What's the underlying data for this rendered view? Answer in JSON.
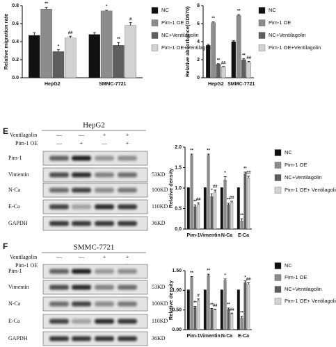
{
  "chart_data": [
    {
      "type": "bar",
      "ylabel": "Relative migration rate",
      "categories": [
        "HepG2",
        "SMMC-7721"
      ],
      "ylim": [
        0,
        0.8
      ],
      "yticks": [
        {
          "value": 0,
          "label": "0.0"
        },
        0.2,
        0.4,
        0.6,
        0.8
      ],
      "series": [
        {
          "name": "NC",
          "color": "#111111",
          "values": [
            0.47,
            0.48
          ],
          "errors": [
            0.03,
            0.02
          ],
          "marks": [
            null,
            null
          ]
        },
        {
          "name": "Pim-1 OE",
          "color": "#8c8c8c",
          "values": [
            0.76,
            0.74
          ],
          "errors": [
            0.02,
            0.01
          ],
          "marks": [
            "**",
            "*"
          ]
        },
        {
          "name": "NC+Ventilagolin",
          "color": "#5e5e5e",
          "values": [
            0.29,
            0.36
          ],
          "errors": [
            0.02,
            0.03
          ],
          "marks": [
            "*",
            "**"
          ]
        },
        {
          "name": "Pim-1 OE+Ventilagolin",
          "color": "#d2d2d2",
          "values": [
            0.44,
            0.58
          ],
          "errors": [
            0.02,
            0.03
          ],
          "marks": [
            "##",
            "#"
          ]
        }
      ]
    },
    {
      "type": "bar",
      "ylabel": "Relative absorbance(OD570)",
      "categories": [
        "HepG2",
        "SMMC-7721"
      ],
      "ylim": [
        0,
        8
      ],
      "yticks": [
        0,
        2,
        4,
        6,
        8
      ],
      "series": [
        {
          "name": "NC",
          "color": "#111111",
          "values": [
            3.6,
            4.0
          ],
          "errors": [
            0.1,
            0.1
          ],
          "marks": [
            null,
            null
          ]
        },
        {
          "name": "Pim-1 OE",
          "color": "#8c8c8c",
          "values": [
            6.1,
            6.9
          ],
          "errors": [
            0.1,
            0.1
          ],
          "marks": [
            "**",
            "**"
          ]
        },
        {
          "name": "NC+Ventilagolin",
          "color": "#5e5e5e",
          "values": [
            1.5,
            2.0
          ],
          "errors": [
            0.05,
            0.1
          ],
          "marks": [
            "**",
            "**"
          ]
        },
        {
          "name": "Pim-1 OE+Ventilagolin",
          "color": "#d2d2d2",
          "values": [
            1.2,
            1.7
          ],
          "errors": [
            0.05,
            0.1
          ],
          "marks": [
            "##",
            "##"
          ]
        }
      ]
    },
    {
      "type": "bar",
      "ylabel": "Relative density",
      "categories": [
        "Pim-1",
        "Vimentin",
        "N-Ca",
        "E-Ca"
      ],
      "ylim": [
        0,
        2.0
      ],
      "yticks": [
        {
          "value": 0,
          "label": "0.0"
        },
        0.5,
        {
          "value": 1,
          "label": "1.0"
        },
        1.5,
        {
          "value": 2,
          "label": "2.0"
        }
      ],
      "series": [
        {
          "name": "NC",
          "color": "#111111",
          "values": [
            1,
            1,
            1,
            1
          ],
          "errors": [
            0.01,
            0.01,
            0.01,
            0.01
          ],
          "marks": [
            null,
            null,
            null,
            null
          ]
        },
        {
          "name": "Pim-1 OE",
          "color": "#8c8c8c",
          "values": [
            1.8,
            1.8,
            1.2,
            0.2
          ],
          "errors": [
            0.03,
            0.03,
            0.08,
            0.05
          ],
          "marks": [
            "**",
            "**",
            "*",
            "**"
          ]
        },
        {
          "name": "NC+Ventilagolin",
          "color": "#5e5e5e",
          "values": [
            0.55,
            0.8,
            0.6,
            1.35
          ],
          "errors": [
            0.04,
            0.06,
            0.03,
            0.04
          ],
          "marks": [
            "**",
            "*",
            "**",
            "**"
          ]
        },
        {
          "name": "Pim-1 OE+ Ventilagolin",
          "color": "#d2d2d2",
          "values": [
            0.6,
            0.9,
            0.65,
            1.25
          ],
          "errors": [
            0.04,
            0.05,
            0.03,
            0.04
          ],
          "marks": [
            "##",
            "##",
            "##",
            "##"
          ]
        }
      ]
    },
    {
      "type": "bar",
      "ylabel": "Relative density",
      "categories": [
        "Pim-1",
        "Vimentin",
        "N-Ca",
        "E-Ca"
      ],
      "ylim": [
        0,
        1.5
      ],
      "yticks": [
        {
          "value": 0,
          "label": "0.00"
        },
        {
          "value": 0.5,
          "label": "0.50"
        },
        {
          "value": 1,
          "label": "1.00"
        },
        {
          "value": 1.5,
          "label": "1.50"
        }
      ],
      "series": [
        {
          "name": "NC",
          "color": "#111111",
          "values": [
            1,
            1,
            1,
            1
          ],
          "errors": [
            0.01,
            0.01,
            0.01,
            0.01
          ],
          "marks": [
            null,
            null,
            null,
            null
          ]
        },
        {
          "name": "Pim-1 OE",
          "color": "#8c8c8c",
          "values": [
            1.33,
            1.38,
            1.25,
            0.3
          ],
          "errors": [
            0.02,
            0.03,
            0.04,
            0.04
          ],
          "marks": [
            "**",
            "**",
            "*",
            "**"
          ]
        },
        {
          "name": "NC+Ventilagolin",
          "color": "#5e5e5e",
          "values": [
            0.57,
            0.52,
            0.52,
            1.2
          ],
          "errors": [
            0.02,
            0.02,
            0.03,
            0.04
          ],
          "marks": [
            "**",
            "**",
            "**",
            "*"
          ]
        },
        {
          "name": "Pim-1 OE+ Ventilagolin",
          "color": "#d2d2d2",
          "values": [
            0.75,
            0.5,
            0.4,
            1.15
          ],
          "errors": [
            0.03,
            0.02,
            0.02,
            0.04
          ],
          "marks": [
            "#",
            "##",
            "##",
            "##"
          ]
        }
      ]
    }
  ],
  "blots": [
    {
      "panel": "E",
      "title": "HepG2",
      "treatments": [
        {
          "name": "Ventilagolin",
          "signs": [
            "—",
            "—",
            "+",
            "+"
          ]
        },
        {
          "name": "Pim-1 OE",
          "signs": [
            "—",
            "+",
            "—",
            "+"
          ]
        }
      ],
      "bands": [
        {
          "name": "Pim-1"
        },
        {
          "name": "Vimentin",
          "size": "53KD"
        },
        {
          "name": "N-Ca",
          "size": "100KD"
        },
        {
          "name": "E-Ca",
          "size": "110KD"
        },
        {
          "name": "GAPDH",
          "size": "36KD"
        }
      ]
    },
    {
      "panel": "F",
      "title": "SMMC-7721",
      "treatments": [
        {
          "name": "Ventilagolin",
          "signs": [
            "—",
            "—",
            "+",
            "+"
          ]
        },
        {
          "name": "Pim-1 OE",
          "signs": [
            "—",
            "+",
            "—",
            "+"
          ]
        }
      ],
      "bands": [
        {
          "name": "Pim-1"
        },
        {
          "name": "Vimentin",
          "size": "53KD"
        },
        {
          "name": "N-Ca",
          "size": "100KD"
        },
        {
          "name": "E-Ca",
          "size": "110KD"
        },
        {
          "name": "GAPDH",
          "size": "36KD"
        }
      ]
    }
  ]
}
